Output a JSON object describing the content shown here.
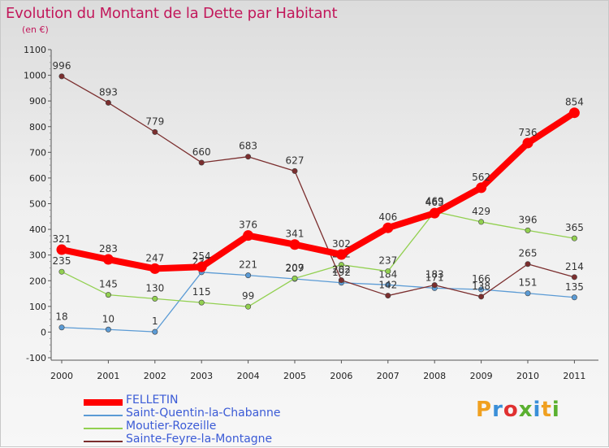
{
  "title": "Evolution du Montant de la Dette par Habitant",
  "unit": "(en €)",
  "logo": {
    "text": "Proxiti",
    "letters": [
      {
        "ch": "P",
        "color": "#f0a020"
      },
      {
        "ch": "r",
        "color": "#3a8fd8"
      },
      {
        "ch": "o",
        "color": "#e03030"
      },
      {
        "ch": "x",
        "color": "#5ab030"
      },
      {
        "ch": "i",
        "color": "#3a8fd8"
      },
      {
        "ch": "t",
        "color": "#f0a020"
      },
      {
        "ch": "i",
        "color": "#5ab030"
      }
    ]
  },
  "chart_data": {
    "type": "line",
    "title": "Evolution du Montant de la Dette par Habitant",
    "ylabel": "(en €)",
    "xlabel": "",
    "x": [
      "2000",
      "2001",
      "2002",
      "2003",
      "2004",
      "2005",
      "2006",
      "2007",
      "2008",
      "2009",
      "2010",
      "2011"
    ],
    "ylim": [
      -100,
      1100
    ],
    "yticks": [
      -100,
      0,
      100,
      200,
      300,
      400,
      500,
      600,
      700,
      800,
      900,
      1000,
      1100
    ],
    "grid": false,
    "legend_position": "bottom-left",
    "series": [
      {
        "name": "FELLETIN",
        "color": "#ff0000",
        "bold": true,
        "values": [
          321,
          283,
          247,
          254,
          376,
          341,
          302,
          406,
          463,
          562,
          736,
          854
        ],
        "labels": [
          321,
          283,
          247,
          254,
          376,
          341,
          302,
          406,
          463,
          562,
          736,
          854
        ]
      },
      {
        "name": "Saint-Quentin-la-Chabanne",
        "color": "#5b9bd5",
        "values": [
          18,
          10,
          1,
          233,
          221,
          207,
          192,
          184,
          171,
          166,
          151,
          135
        ],
        "labels": [
          18,
          10,
          1,
          233,
          221,
          207,
          192,
          184,
          171,
          166,
          151,
          135
        ]
      },
      {
        "name": "Moutier-Rozeille",
        "color": "#92d050",
        "values": [
          235,
          145,
          130,
          115,
          99,
          209,
          262,
          237,
          469,
          429,
          396,
          365
        ],
        "labels": [
          235,
          145,
          130,
          115,
          99,
          209,
          262,
          237,
          469,
          429,
          396,
          365
        ]
      },
      {
        "name": "Sainte-Feyre-la-Montagne",
        "color": "#7b2e2e",
        "values": [
          996,
          893,
          779,
          660,
          683,
          627,
          202,
          142,
          183,
          138,
          265,
          214
        ],
        "labels": [
          996,
          893,
          779,
          660,
          683,
          627,
          202,
          142,
          183,
          138,
          265,
          214
        ]
      }
    ]
  }
}
